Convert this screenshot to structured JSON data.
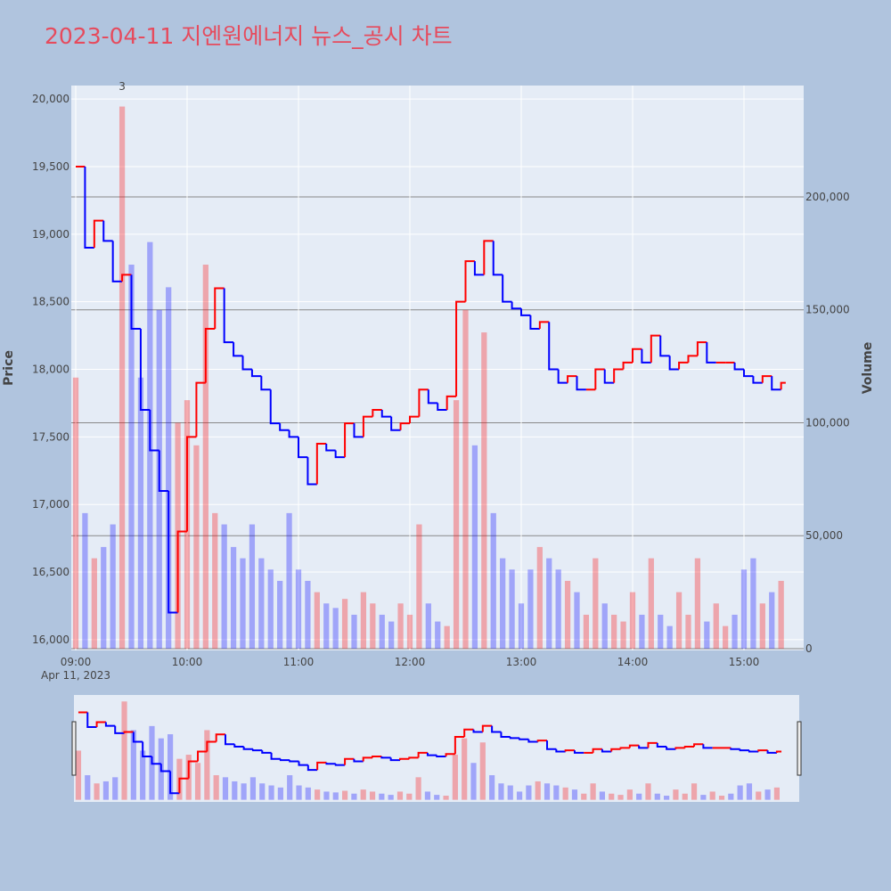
{
  "chart_data": {
    "type": "line",
    "title": "2023-04-11 지엔원에너지 뉴스_공시 차트",
    "title_color": "#e64b5d",
    "ylabel": "Price",
    "y2label": "Volume",
    "x_date_label": "Apr 11, 2023",
    "up_color": "#ff0000",
    "down_color": "#0000ff",
    "x": [
      "2023-04-11 09:00",
      "2023-04-11 09:05",
      "2023-04-11 09:10",
      "2023-04-11 09:15",
      "2023-04-11 09:20",
      "2023-04-11 09:25",
      "2023-04-11 09:30",
      "2023-04-11 09:35",
      "2023-04-11 09:40",
      "2023-04-11 09:45",
      "2023-04-11 09:50",
      "2023-04-11 09:55",
      "2023-04-11 10:00",
      "2023-04-11 10:05",
      "2023-04-11 10:10",
      "2023-04-11 10:15",
      "2023-04-11 10:20",
      "2023-04-11 10:25",
      "2023-04-11 10:30",
      "2023-04-11 10:35",
      "2023-04-11 10:40",
      "2023-04-11 10:45",
      "2023-04-11 10:50",
      "2023-04-11 10:55",
      "2023-04-11 11:00",
      "2023-04-11 11:05",
      "2023-04-11 11:10",
      "2023-04-11 11:15",
      "2023-04-11 11:20",
      "2023-04-11 11:25",
      "2023-04-11 11:30",
      "2023-04-11 11:35",
      "2023-04-11 11:40",
      "2023-04-11 11:45",
      "2023-04-11 11:50",
      "2023-04-11 11:55",
      "2023-04-11 12:00",
      "2023-04-11 12:05",
      "2023-04-11 12:10",
      "2023-04-11 12:15",
      "2023-04-11 12:20",
      "2023-04-11 12:25",
      "2023-04-11 12:30",
      "2023-04-11 12:35",
      "2023-04-11 12:40",
      "2023-04-11 12:45",
      "2023-04-11 12:50",
      "2023-04-11 12:55",
      "2023-04-11 13:00",
      "2023-04-11 13:05",
      "2023-04-11 13:10",
      "2023-04-11 13:15",
      "2023-04-11 13:20",
      "2023-04-11 13:25",
      "2023-04-11 13:30",
      "2023-04-11 13:35",
      "2023-04-11 13:40",
      "2023-04-11 13:45",
      "2023-04-11 13:50",
      "2023-04-11 13:55",
      "2023-04-11 14:00",
      "2023-04-11 14:05",
      "2023-04-11 14:10",
      "2023-04-11 14:15",
      "2023-04-11 14:20",
      "2023-04-11 14:25",
      "2023-04-11 14:30",
      "2023-04-11 14:35",
      "2023-04-11 14:40",
      "2023-04-11 14:45",
      "2023-04-11 14:50",
      "2023-04-11 14:55",
      "2023-04-11 15:00",
      "2023-04-11 15:05",
      "2023-04-11 15:10",
      "2023-04-11 15:15",
      "2023-04-11 15:20"
    ],
    "series": [
      {
        "name": "Price",
        "values": [
          19500,
          18900,
          19100,
          18950,
          18650,
          18700,
          18300,
          17700,
          17400,
          17100,
          16200,
          16800,
          17500,
          17900,
          18300,
          18600,
          18200,
          18100,
          18000,
          17950,
          17850,
          17600,
          17550,
          17500,
          17350,
          17150,
          17450,
          17400,
          17350,
          17600,
          17500,
          17650,
          17700,
          17650,
          17550,
          17600,
          17650,
          17850,
          17750,
          17700,
          17800,
          18500,
          18800,
          18700,
          18950,
          18700,
          18500,
          18450,
          18400,
          18300,
          18350,
          18000,
          17900,
          17950,
          17850,
          17850,
          18000,
          17900,
          18000,
          18050,
          18150,
          18050,
          18250,
          18100,
          18000,
          18050,
          18100,
          18200,
          18050,
          18050,
          18050,
          18000,
          17950,
          17900,
          17950,
          17850,
          17900
        ]
      },
      {
        "name": "Volume",
        "axis": "y2",
        "values": [
          120000,
          60000,
          40000,
          45000,
          55000,
          240000,
          170000,
          120000,
          180000,
          150000,
          160000,
          100000,
          110000,
          90000,
          170000,
          60000,
          55000,
          45000,
          40000,
          55000,
          40000,
          35000,
          30000,
          60000,
          35000,
          30000,
          25000,
          20000,
          18000,
          22000,
          15000,
          25000,
          20000,
          15000,
          12000,
          20000,
          15000,
          55000,
          20000,
          12000,
          10000,
          110000,
          150000,
          90000,
          140000,
          60000,
          40000,
          35000,
          20000,
          35000,
          45000,
          40000,
          35000,
          30000,
          25000,
          15000,
          40000,
          20000,
          15000,
          12000,
          25000,
          15000,
          40000,
          15000,
          10000,
          25000,
          15000,
          40000,
          12000,
          20000,
          10000,
          15000,
          35000,
          40000,
          20000,
          25000,
          30000
        ]
      }
    ],
    "xlim": [
      "2023-04-11 08:57:36",
      "2023-04-11 15:32:10"
    ],
    "xticks": [
      {
        "value": "2023-04-11 09:00",
        "label": "09:00"
      },
      {
        "value": "2023-04-11 10:00",
        "label": "10:00"
      },
      {
        "value": "2023-04-11 11:00",
        "label": "11:00"
      },
      {
        "value": "2023-04-11 12:00",
        "label": "12:00"
      },
      {
        "value": "2023-04-11 13:00",
        "label": "13:00"
      },
      {
        "value": "2023-04-11 14:00",
        "label": "14:00"
      },
      {
        "value": "2023-04-11 15:00",
        "label": "15:00"
      }
    ],
    "ylim": [
      15920,
      20100
    ],
    "yticks": [
      {
        "value": 16000,
        "label": "16,000"
      },
      {
        "value": 16500,
        "label": "16,500"
      },
      {
        "value": 17000,
        "label": "17,000"
      },
      {
        "value": 17500,
        "label": "17,500"
      },
      {
        "value": 18000,
        "label": "18,000"
      },
      {
        "value": 18500,
        "label": "18,500"
      },
      {
        "value": 19000,
        "label": "19,000"
      },
      {
        "value": 19500,
        "label": "19,500"
      },
      {
        "value": 20000,
        "label": "20,000"
      }
    ],
    "y2lim": [
      -800,
      249300
    ],
    "y2ticks": [
      0,
      {
        "value": 50000,
        "label": "50,000"
      },
      {
        "value": 100000,
        "label": "100,000"
      },
      {
        "value": 150000,
        "label": "150,000"
      },
      {
        "value": 200000,
        "label": "200,000"
      }
    ],
    "annotations": [
      {
        "text": "3",
        "x": "2023-04-11 09:25"
      }
    ],
    "grid": true,
    "rangeslider": true
  }
}
